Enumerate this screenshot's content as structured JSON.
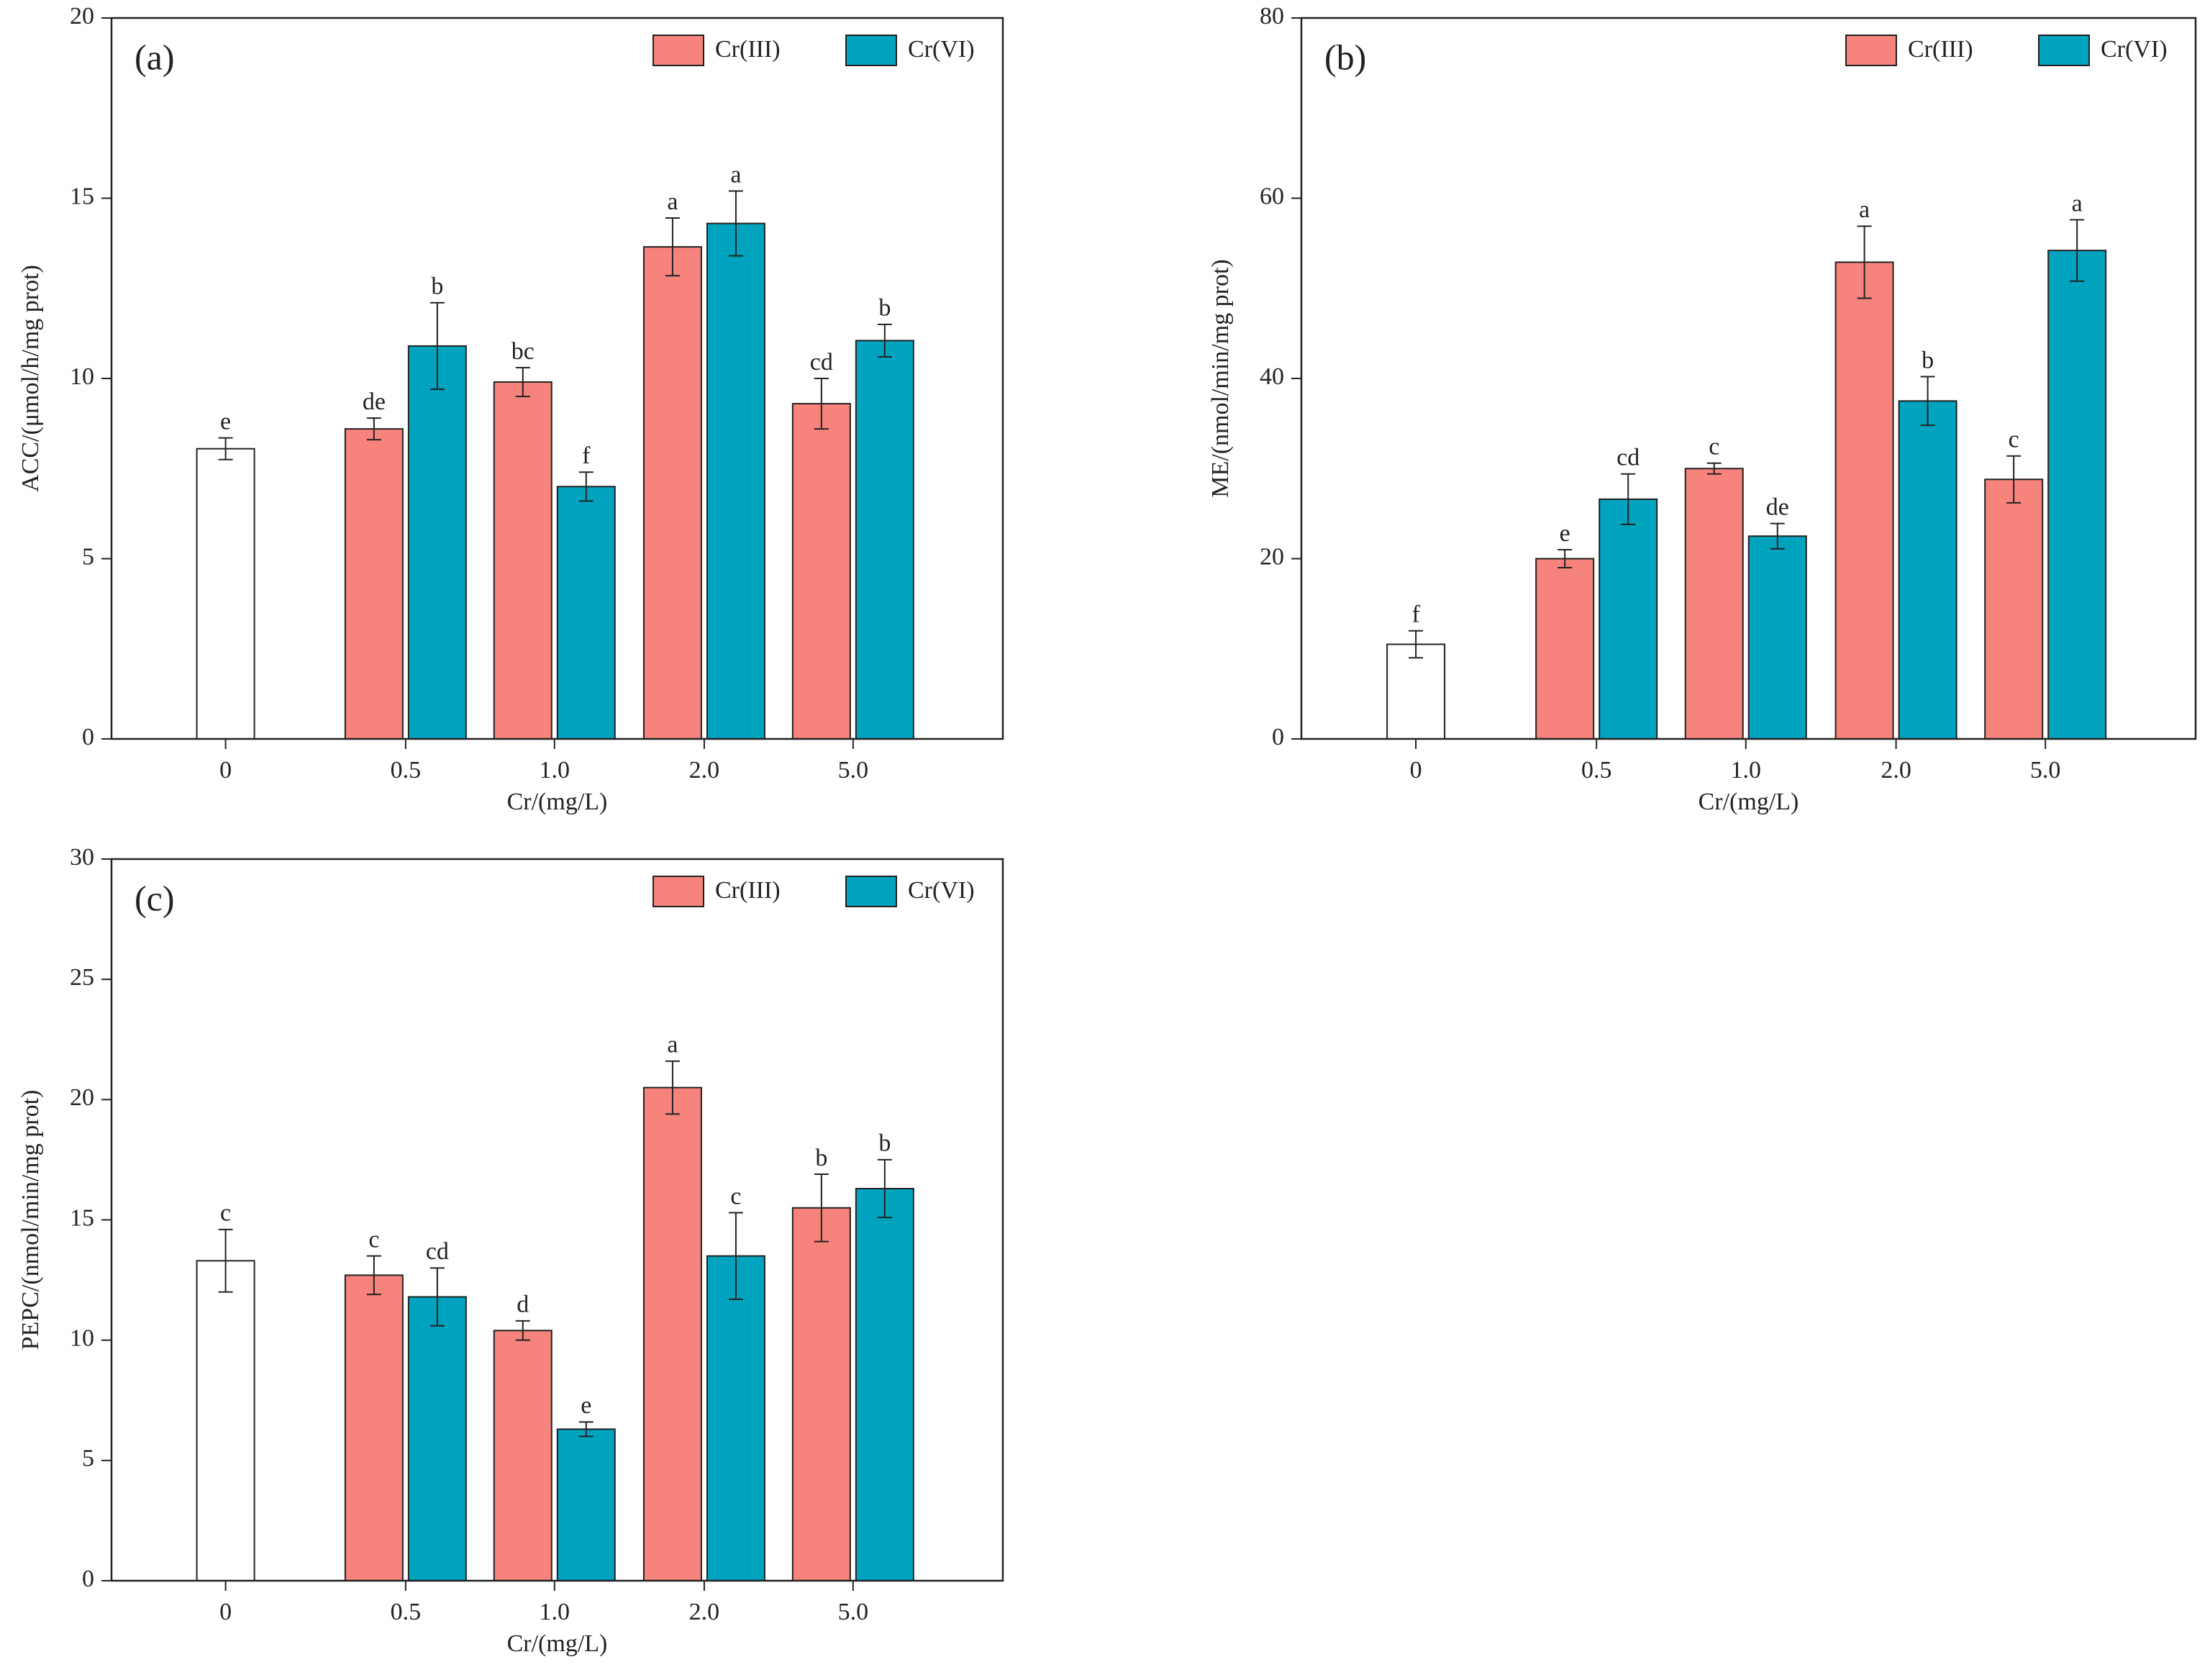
{
  "chart_data": [
    {
      "type": "bar",
      "panel": "(a)",
      "ylabel": "ACC/(μmol/h/mg prot)",
      "xlabel": "Cr/(mg/L)",
      "categories": [
        "0",
        "0.5",
        "1.0",
        "2.0",
        "5.0"
      ],
      "ylim": [
        0,
        20
      ],
      "yticks": [
        0,
        5,
        10,
        15,
        20
      ],
      "series": [
        {
          "color": "#ffffff",
          "values": [
            8.05,
            null,
            null,
            null,
            null
          ],
          "errors": [
            0.3,
            null,
            null,
            null,
            null
          ],
          "letters": [
            "e",
            null,
            null,
            null,
            null
          ]
        },
        {
          "name": "Cr(III)",
          "color": "#f6837c",
          "values": [
            null,
            8.6,
            9.9,
            13.65,
            9.3
          ],
          "errors": [
            null,
            0.3,
            0.4,
            0.8,
            0.7
          ],
          "letters": [
            null,
            "de",
            "bc",
            "a",
            "cd"
          ]
        },
        {
          "name": "Cr(VI)",
          "color": "#00a3be",
          "values": [
            null,
            10.9,
            7.0,
            14.3,
            11.05
          ],
          "errors": [
            null,
            1.2,
            0.4,
            0.9,
            0.45
          ],
          "letters": [
            null,
            "b",
            "f",
            "a",
            "b"
          ]
        }
      ]
    },
    {
      "type": "bar",
      "panel": "(b)",
      "ylabel": "ME/(nmol/min/mg prot)",
      "xlabel": "Cr/(mg/L)",
      "categories": [
        "0",
        "0.5",
        "1.0",
        "2.0",
        "5.0"
      ],
      "ylim": [
        0,
        80
      ],
      "yticks": [
        0,
        20,
        40,
        60,
        80
      ],
      "series": [
        {
          "color": "#ffffff",
          "values": [
            10.5,
            null,
            null,
            null,
            null
          ],
          "errors": [
            1.5,
            null,
            null,
            null,
            null
          ],
          "letters": [
            "f",
            null,
            null,
            null,
            null
          ]
        },
        {
          "name": "Cr(III)",
          "color": "#f6837c",
          "values": [
            null,
            20,
            30,
            52.9,
            28.8
          ],
          "errors": [
            null,
            1,
            0.6,
            4,
            2.6
          ],
          "letters": [
            null,
            "e",
            "c",
            "a",
            "c"
          ]
        },
        {
          "name": "Cr(VI)",
          "color": "#00a3be",
          "values": [
            null,
            26.6,
            22.5,
            37.5,
            54.2
          ],
          "errors": [
            null,
            2.8,
            1.4,
            2.7,
            3.4
          ],
          "letters": [
            null,
            "cd",
            "de",
            "b",
            "a"
          ]
        }
      ]
    },
    {
      "type": "bar",
      "panel": "(c)",
      "ylabel": "PEPC/(nmol/min/mg prot)",
      "xlabel": "Cr/(mg/L)",
      "categories": [
        "0",
        "0.5",
        "1.0",
        "2.0",
        "5.0"
      ],
      "ylim": [
        0,
        30
      ],
      "yticks": [
        0,
        5,
        10,
        15,
        20,
        25,
        30
      ],
      "series": [
        {
          "color": "#ffffff",
          "values": [
            13.3,
            null,
            null,
            null,
            null
          ],
          "errors": [
            1.3,
            null,
            null,
            null,
            null
          ],
          "letters": [
            "c",
            null,
            null,
            null,
            null
          ]
        },
        {
          "name": "Cr(III)",
          "color": "#f6837c",
          "values": [
            null,
            12.7,
            10.4,
            20.5,
            15.5
          ],
          "errors": [
            null,
            0.8,
            0.4,
            1.1,
            1.4
          ],
          "letters": [
            null,
            "c",
            "d",
            "a",
            "b"
          ]
        },
        {
          "name": "Cr(VI)",
          "color": "#00a3be",
          "values": [
            null,
            11.8,
            6.3,
            13.5,
            16.3
          ],
          "errors": [
            null,
            1.2,
            0.3,
            1.8,
            1.2
          ],
          "letters": [
            null,
            "cd",
            "e",
            "c",
            "b"
          ]
        }
      ]
    }
  ]
}
